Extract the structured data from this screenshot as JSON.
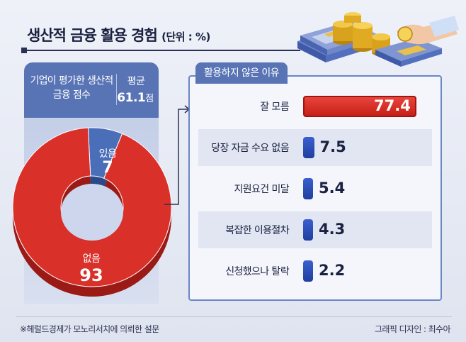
{
  "title": "생산적 금융 활용 경험",
  "unit": "(단위 : %)",
  "left_panel": {
    "question": "기업이 평가한 생산적 금융 점수",
    "avg_label": "평균",
    "avg_value": "61.1",
    "avg_suffix": "점"
  },
  "right_panel": {
    "tab_label": "활용하지 않은 이유"
  },
  "chart_data": [
    {
      "type": "pie",
      "labels": [
        "있음",
        "없음"
      ],
      "values": [
        7,
        93
      ],
      "value_labels": [
        "7",
        "93"
      ],
      "colors": [
        "#4a6fb8",
        "#d9302a"
      ]
    },
    {
      "type": "bar",
      "orientation": "horizontal",
      "title": "활용하지 않은 이유",
      "categories": [
        "잘 모름",
        "당장 자금 수요 없음",
        "지원요건 미달",
        "복잡한 이용절차",
        "신청했으나 탈락"
      ],
      "values": [
        77.4,
        7.5,
        5.4,
        4.3,
        2.2
      ],
      "value_labels": [
        "77.4",
        "7.5",
        "5.4",
        "4.3",
        "2.2"
      ],
      "highlight_color": "#d9302a",
      "bar_color": "#2a4cb3"
    }
  ],
  "footnote": "※헤럴드경제가 모노리서치에 의뢰한 설문",
  "credit": "그래픽 디자인 : 최수아"
}
